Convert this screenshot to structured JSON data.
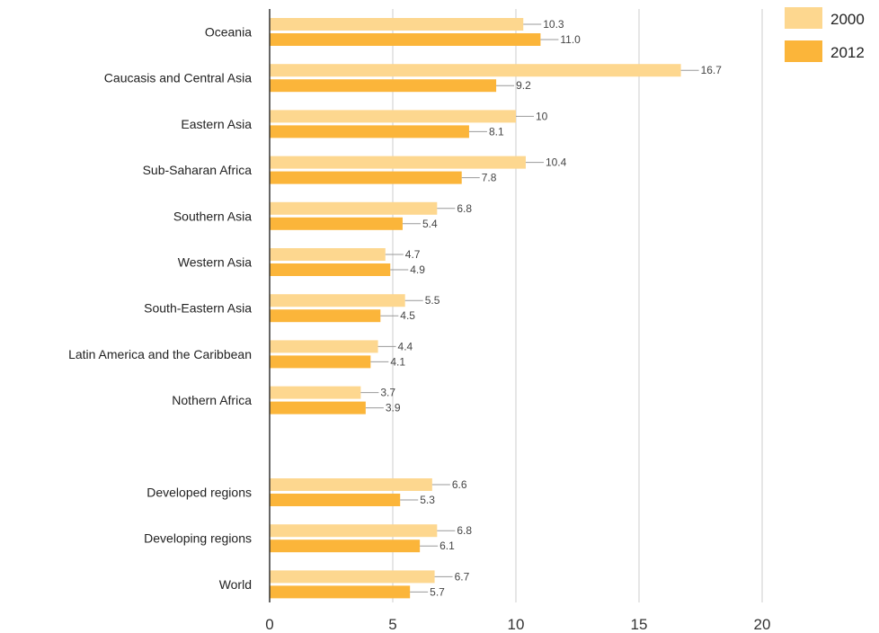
{
  "chart_data": {
    "type": "bar",
    "orientation": "horizontal",
    "categories": [
      "Oceania",
      "Caucasis and Central Asia",
      "Eastern Asia",
      "Sub-Saharan Africa",
      "Southern Asia",
      "Western Asia",
      "South-Eastern Asia",
      "Latin America and the Caribbean",
      "Nothern Africa",
      "",
      "Developed regions",
      "Developing regions",
      "World"
    ],
    "series": [
      {
        "name": "2000",
        "color": "#fdd78f",
        "values": [
          10.3,
          16.7,
          10,
          10.4,
          6.8,
          4.7,
          5.5,
          4.4,
          3.7,
          null,
          6.6,
          6.8,
          6.7
        ],
        "labels": [
          "10.3",
          "16.7",
          "10",
          "10.4",
          "6.8",
          "4.7",
          "5.5",
          "4.4",
          "3.7",
          "",
          "6.6",
          "6.8",
          "6.7"
        ]
      },
      {
        "name": "2012",
        "color": "#fbb53a",
        "values": [
          11.0,
          9.2,
          8.1,
          7.8,
          5.4,
          4.9,
          4.5,
          4.1,
          3.9,
          null,
          5.3,
          6.1,
          5.7
        ],
        "labels": [
          "11.0",
          "9.2",
          "8.1",
          "7.8",
          "5.4",
          "4.9",
          "4.5",
          "4.1",
          "3.9",
          "",
          "5.3",
          "6.1",
          "5.7"
        ]
      }
    ],
    "xlim": [
      0,
      20
    ],
    "xticks": [
      "0",
      "5",
      "10",
      "15",
      "20"
    ],
    "grid": true,
    "legend_position": "top-right",
    "title": "",
    "xlabel": "",
    "ylabel": ""
  }
}
